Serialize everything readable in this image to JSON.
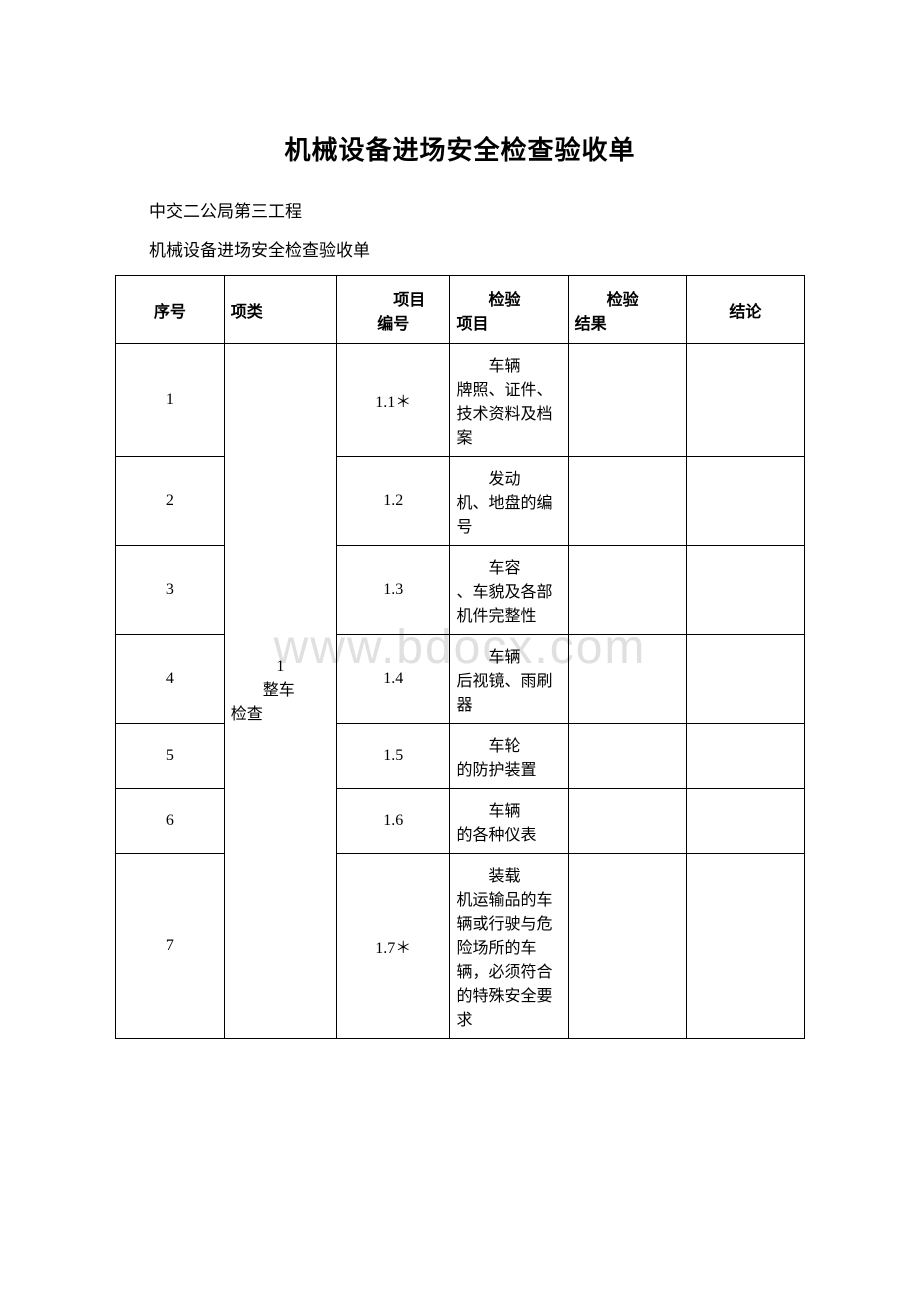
{
  "document": {
    "title": "机械设备进场安全检查验收单",
    "subtitle1": "中交二公局第三工程",
    "subtitle2": "机械设备进场安全检查验收单",
    "watermark": "www.bdocx.com"
  },
  "table": {
    "type": "table",
    "border_color": "#000000",
    "background_color": "#ffffff",
    "text_color": "#000000",
    "font_size": 16,
    "headers": {
      "seq": "序号",
      "category": "项类",
      "item_num_line1": "项目",
      "item_num_line2": "编号",
      "item_content_line1": "检验",
      "item_content_line2": "项目",
      "result_line1": "检验",
      "result_line2": "结果",
      "conclusion": "结论"
    },
    "category": {
      "number": "1",
      "name_first": "整车",
      "name_rest": "检查"
    },
    "rows": [
      {
        "seq": "1",
        "item_num": "1.1＊",
        "content_first": "车辆",
        "content_rest": "牌照、证件、技术资料及档案",
        "result": "",
        "conclusion": ""
      },
      {
        "seq": "2",
        "item_num": "1.2",
        "content_first": "发动",
        "content_rest": "机、地盘的编号",
        "result": "",
        "conclusion": ""
      },
      {
        "seq": "3",
        "item_num": "1.3",
        "content_first": "车容",
        "content_rest": "、车貌及各部机件完整性",
        "result": "",
        "conclusion": ""
      },
      {
        "seq": "4",
        "item_num": "1.4",
        "content_first": "车辆",
        "content_rest": "后视镜、雨刷器",
        "result": "",
        "conclusion": ""
      },
      {
        "seq": "5",
        "item_num": "1.5",
        "content_first": "车轮",
        "content_rest": "的防护装置",
        "result": "",
        "conclusion": ""
      },
      {
        "seq": "6",
        "item_num": "1.6",
        "content_first": "车辆",
        "content_rest": "的各种仪表",
        "result": "",
        "conclusion": ""
      },
      {
        "seq": "7",
        "item_num": "1.7＊",
        "content_first": "装载",
        "content_rest": "机运输品的车辆或行驶与危险场所的车辆，必须符合的特殊安全要求",
        "result": "",
        "conclusion": ""
      }
    ],
    "column_widths": {
      "seq": 92,
      "category": 95,
      "item_num": 96,
      "item_content": 100,
      "result": 100,
      "conclusion": 100
    }
  }
}
